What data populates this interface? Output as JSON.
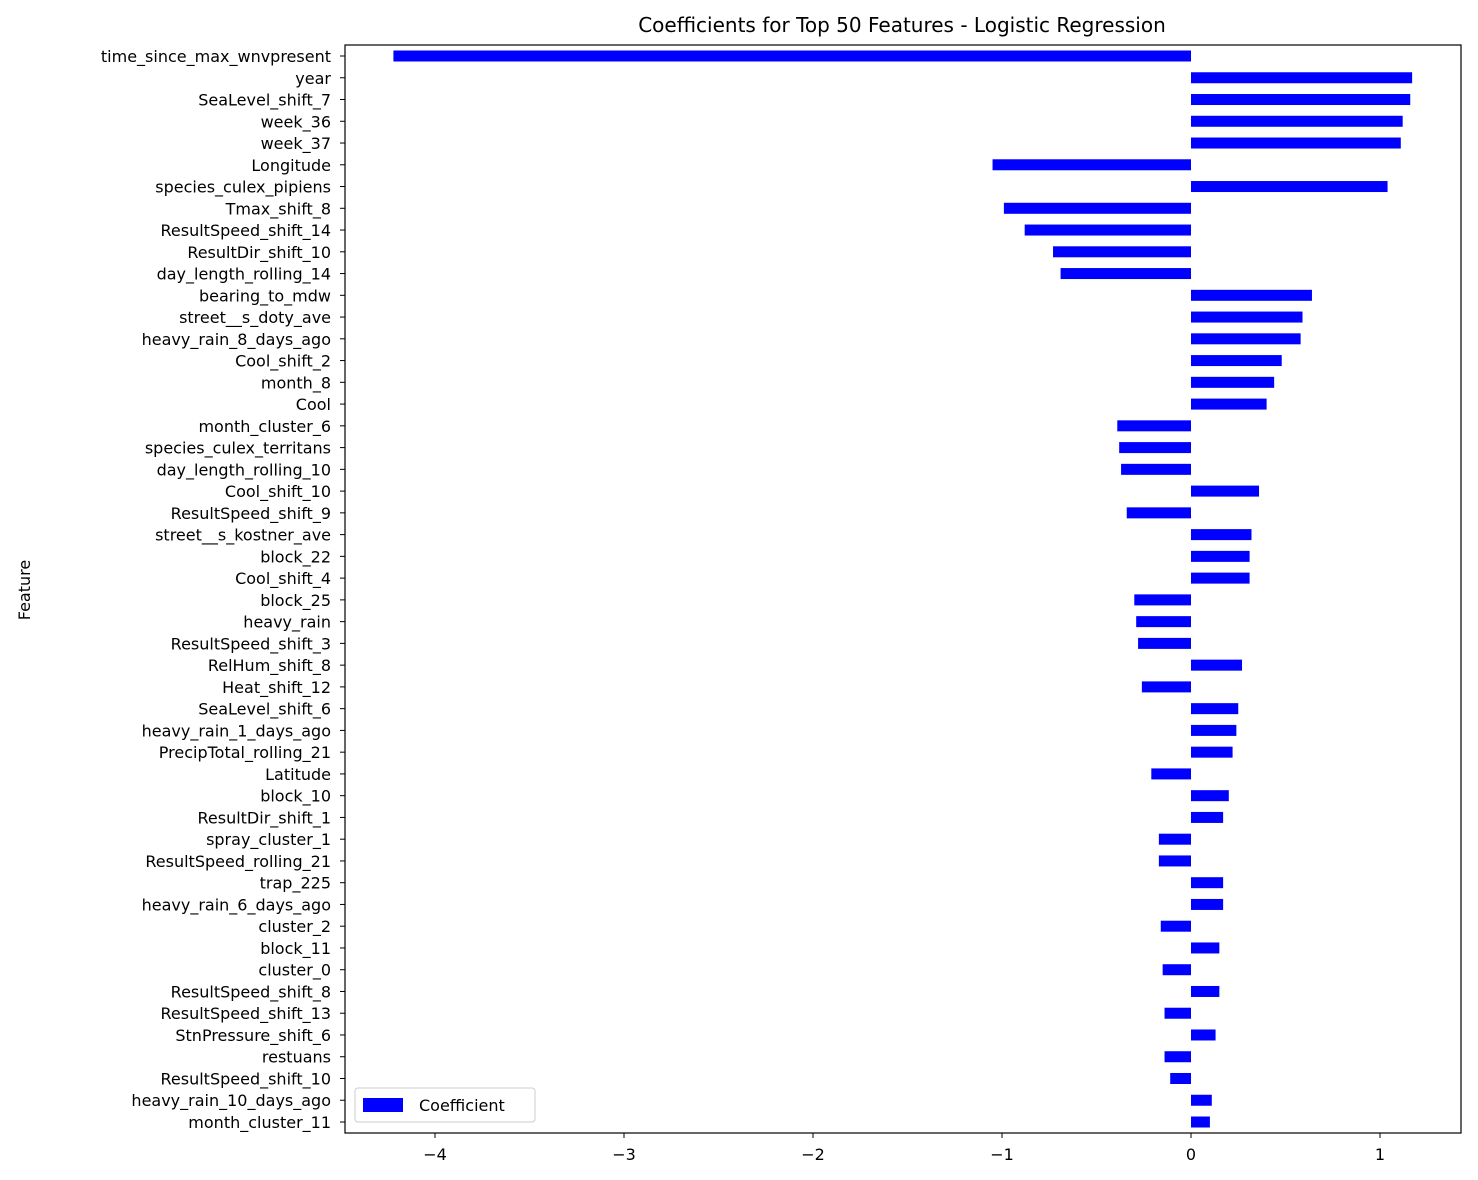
{
  "chart_data": {
    "type": "bar",
    "orientation": "horizontal",
    "title": "Coefficients for Top 50 Features - Logistic Regression",
    "ylabel": "Feature",
    "xlabel": "",
    "xlim": [
      -4.5,
      1.45
    ],
    "xticks": [
      -4,
      -3,
      -2,
      -1,
      0,
      1
    ],
    "xtick_labels": [
      "−4",
      "−3",
      "−2",
      "−1",
      "0",
      "1"
    ],
    "grid": false,
    "legend": {
      "position": "lower-left",
      "entries": [
        "Coefficient"
      ]
    },
    "bar_color": "#0000ff",
    "series": [
      {
        "name": "Coefficient",
        "categories": [
          "time_since_max_wnvpresent",
          "year",
          "SeaLevel_shift_7",
          "week_36",
          "week_37",
          "Longitude",
          "species_culex_pipiens",
          "Tmax_shift_8",
          "ResultSpeed_shift_14",
          "ResultDir_shift_10",
          "day_length_rolling_14",
          "bearing_to_mdw",
          "street__s_doty_ave",
          "heavy_rain_8_days_ago",
          "Cool_shift_2",
          "month_8",
          "Cool",
          "month_cluster_6",
          "species_culex_territans",
          "day_length_rolling_10",
          "Cool_shift_10",
          "ResultSpeed_shift_9",
          "street__s_kostner_ave",
          "block_22",
          "Cool_shift_4",
          "block_25",
          "heavy_rain",
          "ResultSpeed_shift_3",
          "RelHum_shift_8",
          "Heat_shift_12",
          "SeaLevel_shift_6",
          "heavy_rain_1_days_ago",
          "PrecipTotal_rolling_21",
          "Latitude",
          "block_10",
          "ResultDir_shift_1",
          "spray_cluster_1",
          "ResultSpeed_rolling_21",
          "trap_225",
          "heavy_rain_6_days_ago",
          "cluster_2",
          "block_11",
          "cluster_0",
          "ResultSpeed_shift_8",
          "ResultSpeed_shift_13",
          "StnPressure_shift_6",
          "restuans",
          "ResultSpeed_shift_10",
          "heavy_rain_10_days_ago",
          "month_cluster_11"
        ],
        "values": [
          -4.22,
          1.17,
          1.16,
          1.12,
          1.11,
          -1.05,
          1.04,
          -0.99,
          -0.88,
          -0.73,
          -0.69,
          0.64,
          0.59,
          0.58,
          0.48,
          0.44,
          0.4,
          -0.39,
          -0.38,
          -0.37,
          0.36,
          -0.34,
          0.32,
          0.31,
          0.31,
          -0.3,
          -0.29,
          -0.28,
          0.27,
          -0.26,
          0.25,
          0.24,
          0.22,
          -0.21,
          0.2,
          0.17,
          -0.17,
          -0.17,
          0.17,
          0.17,
          -0.16,
          0.15,
          -0.15,
          0.15,
          -0.14,
          0.13,
          -0.14,
          -0.11,
          0.11,
          0.1
        ]
      }
    ]
  }
}
